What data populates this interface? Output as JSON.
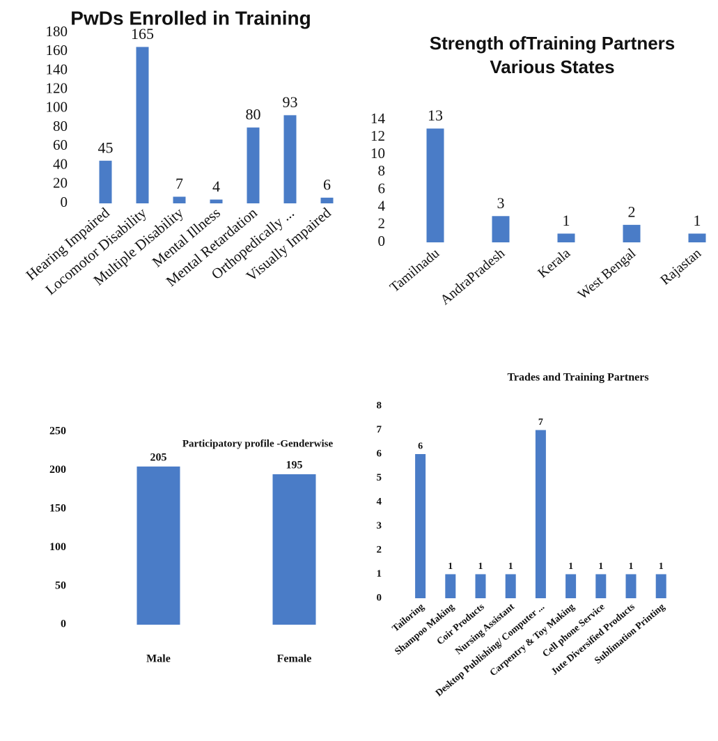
{
  "chart_data": [
    {
      "type": "bar",
      "title": "PwDs Enrolled in Training",
      "categories": [
        "Hearing Impaired",
        "Locomotor Disability",
        "Multiple Disability",
        "Mental Illness",
        "Mental Retardation",
        "Orthopedically ...",
        "Visually Impaired"
      ],
      "values": [
        45,
        165,
        7,
        4,
        80,
        93,
        6
      ],
      "color": "#4a7cc7",
      "ylim": [
        0,
        180
      ],
      "yticks": [
        0,
        20,
        40,
        60,
        80,
        100,
        120,
        140,
        160,
        180
      ]
    },
    {
      "type": "bar",
      "title": [
        "Strength ofTraining Partners",
        "Various States"
      ],
      "categories": [
        "Tamilnadu",
        "AndraPradesh",
        "Kerala",
        "West Bengal",
        "Rajastan"
      ],
      "values": [
        13,
        3,
        1,
        2,
        1
      ],
      "color": "#4a7cc7",
      "ylim": [
        0,
        14
      ],
      "yticks": [
        0,
        2,
        4,
        6,
        8,
        10,
        12,
        14
      ]
    },
    {
      "type": "bar",
      "title": "Participatory profile -Genderwise",
      "categories": [
        "Male",
        "Female"
      ],
      "values": [
        205,
        195
      ],
      "color": "#4a7cc7",
      "ylim": [
        0,
        250
      ],
      "yticks": [
        0,
        50,
        100,
        150,
        200,
        250
      ]
    },
    {
      "type": "bar",
      "title": "Trades and Training Partners",
      "categories": [
        "Tailoring",
        "Shampoo Making",
        "Coir Products",
        "Nursing Assistant",
        "Desktop Publishing/ Computer ...",
        "Carpentry & Toy Making",
        "Cell phone Service",
        "Jute Diversified Products",
        "Sublimation Printing"
      ],
      "values": [
        6,
        1,
        1,
        1,
        7,
        1,
        1,
        1,
        1
      ],
      "color": "#4a7cc7",
      "ylim": [
        0,
        8
      ],
      "yticks": [
        0,
        1,
        2,
        3,
        4,
        5,
        6,
        7,
        8
      ]
    }
  ]
}
